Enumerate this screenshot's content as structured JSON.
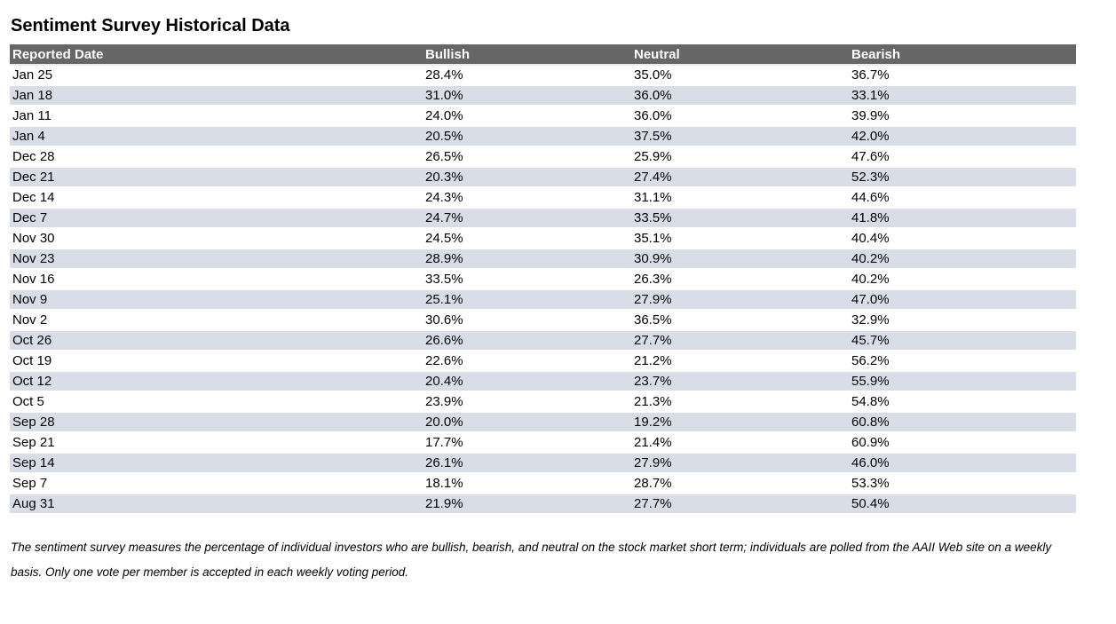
{
  "title": "Sentiment Survey Historical Data",
  "table": {
    "columns": [
      "Reported Date",
      "Bullish",
      "Neutral",
      "Bearish"
    ]
  },
  "chart_data": {
    "type": "table",
    "title": "Sentiment Survey Historical Data",
    "categories": [
      "Jan 25",
      "Jan 18",
      "Jan 11",
      "Jan 4",
      "Dec 28",
      "Dec 21",
      "Dec 14",
      "Dec 7",
      "Nov 30",
      "Nov 23",
      "Nov 16",
      "Nov 9",
      "Nov 2",
      "Oct 26",
      "Oct 19",
      "Oct 12",
      "Oct 5",
      "Sep 28",
      "Sep 21",
      "Sep 14",
      "Sep 7",
      "Aug 31"
    ],
    "series": [
      {
        "name": "Bullish",
        "values": [
          28.4,
          31.0,
          24.0,
          20.5,
          26.5,
          20.3,
          24.3,
          24.7,
          24.5,
          28.9,
          33.5,
          25.1,
          30.6,
          26.6,
          22.6,
          20.4,
          23.9,
          20.0,
          17.7,
          26.1,
          18.1,
          21.9
        ]
      },
      {
        "name": "Neutral",
        "values": [
          35.0,
          36.0,
          36.0,
          37.5,
          25.9,
          27.4,
          31.1,
          33.5,
          35.1,
          30.9,
          26.3,
          27.9,
          36.5,
          27.7,
          21.2,
          23.7,
          21.3,
          19.2,
          21.4,
          27.9,
          28.7,
          27.7
        ]
      },
      {
        "name": "Bearish",
        "values": [
          36.7,
          33.1,
          39.9,
          42.0,
          47.6,
          52.3,
          44.6,
          41.8,
          40.4,
          40.2,
          40.2,
          47.0,
          32.9,
          45.7,
          56.2,
          55.9,
          54.8,
          60.8,
          60.9,
          46.0,
          53.3,
          50.4
        ]
      }
    ],
    "unit": "%"
  },
  "footnote": "The sentiment survey measures the percentage of individual investors who are bullish, bearish, and neutral on the stock market short term; individuals are polled from the AAII Web site on a weekly basis. Only one vote per member is accepted in each weekly voting period.",
  "colors": {
    "header_bg": "#666666",
    "header_text": "#ffffff",
    "row_stripe": "#d8dde8",
    "row_plain": "#ffffff",
    "text": "#000000"
  }
}
